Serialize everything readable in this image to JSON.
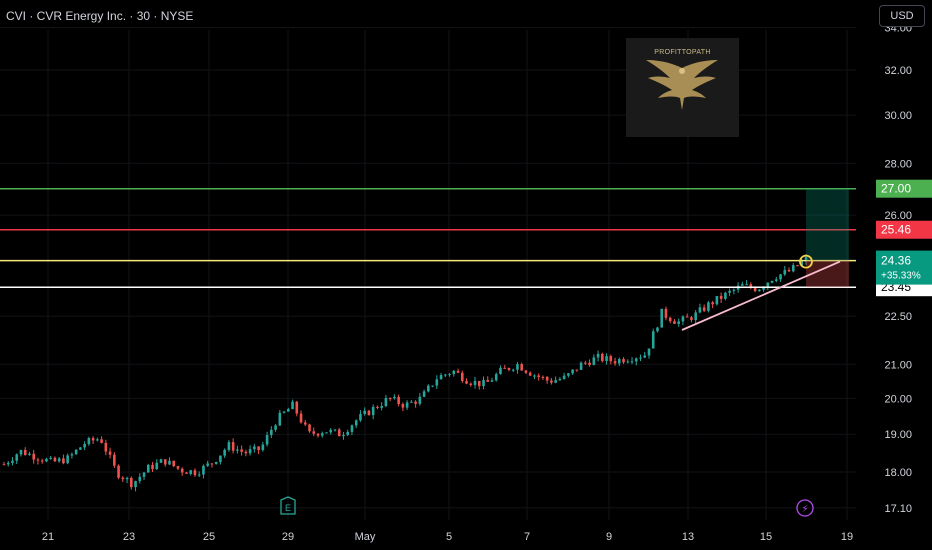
{
  "header": {
    "title": "CVI · CVR Energy Inc. · 30 · NYSE",
    "currency": "USD"
  },
  "watermark": {
    "text": "PROFITTOPATH"
  },
  "colors": {
    "background": "#000000",
    "grid": "#111317",
    "text": "#d1d4dc",
    "candle_up": "#26a69a",
    "candle_down": "#ef5350",
    "target_line": "#4caf50",
    "target_label": "#4caf50",
    "stop_line": "#f23645",
    "stop_label": "#f23645",
    "entry_line": "#f5e97a",
    "support_line": "#ffffff",
    "price_label": "#089981",
    "trendline": "#f8bbd0",
    "marker_circle": "#f0d04a",
    "earnings_icon": "#26a69a",
    "dividend_icon": "#b44bf0"
  },
  "chart_data": {
    "type": "candlestick",
    "price_axis": {
      "ticks": [
        34.0,
        32.0,
        30.0,
        28.0,
        26.0,
        22.5,
        21.0,
        20.0,
        19.0,
        18.0,
        17.1
      ],
      "scale": "log"
    },
    "time_axis": {
      "ticks": [
        "21",
        "23",
        "25",
        "29",
        "May",
        "5",
        "7",
        "9",
        "13",
        "15",
        "19"
      ]
    },
    "price_series": [
      {
        "t": 0,
        "p": 18.2
      },
      {
        "t": 1,
        "p": 18.55
      },
      {
        "t": 2,
        "p": 18.4
      },
      {
        "t": 3,
        "p": 18.25
      },
      {
        "t": 4,
        "p": 18.35
      },
      {
        "t": 5,
        "p": 18.75
      },
      {
        "t": 6,
        "p": 18.9
      },
      {
        "t": 7,
        "p": 18.0
      },
      {
        "t": 8,
        "p": 17.7
      },
      {
        "t": 9,
        "p": 18.1
      },
      {
        "t": 10,
        "p": 18.3
      },
      {
        "t": 11,
        "p": 18.05
      },
      {
        "t": 12,
        "p": 18.0
      },
      {
        "t": 13,
        "p": 18.25
      },
      {
        "t": 14,
        "p": 18.7
      },
      {
        "t": 15,
        "p": 18.5
      },
      {
        "t": 16,
        "p": 18.6
      },
      {
        "t": 17,
        "p": 19.4
      },
      {
        "t": 18,
        "p": 19.8
      },
      {
        "t": 19,
        "p": 19.0
      },
      {
        "t": 20,
        "p": 19.1
      },
      {
        "t": 21,
        "p": 19.0
      },
      {
        "t": 22,
        "p": 19.4
      },
      {
        "t": 23,
        "p": 19.7
      },
      {
        "t": 24,
        "p": 20.0
      },
      {
        "t": 25,
        "p": 19.8
      },
      {
        "t": 26,
        "p": 20.0
      },
      {
        "t": 27,
        "p": 20.6
      },
      {
        "t": 28,
        "p": 20.8
      },
      {
        "t": 29,
        "p": 20.5
      },
      {
        "t": 30,
        "p": 20.4
      },
      {
        "t": 31,
        "p": 20.8
      },
      {
        "t": 32,
        "p": 21.0
      },
      {
        "t": 33,
        "p": 20.7
      },
      {
        "t": 34,
        "p": 20.5
      },
      {
        "t": 35,
        "p": 20.6
      },
      {
        "t": 36,
        "p": 21.0
      },
      {
        "t": 37,
        "p": 21.2
      },
      {
        "t": 38,
        "p": 21.1
      },
      {
        "t": 39,
        "p": 21.2
      },
      {
        "t": 40,
        "p": 21.3
      },
      {
        "t": 41,
        "p": 22.6
      },
      {
        "t": 42,
        "p": 22.3
      },
      {
        "t": 43,
        "p": 22.5
      },
      {
        "t": 44,
        "p": 22.9
      },
      {
        "t": 45,
        "p": 23.2
      },
      {
        "t": 46,
        "p": 23.5
      },
      {
        "t": 47,
        "p": 23.4
      },
      {
        "t": 48,
        "p": 23.8
      },
      {
        "t": 49,
        "p": 24.0
      },
      {
        "t": 50,
        "p": 24.4
      }
    ],
    "levels": {
      "target": 27.0,
      "stop": 25.46,
      "entry": 24.36,
      "support": 23.45
    },
    "labels": {
      "target": "27.00",
      "stop": "25.46",
      "current_price": "24.36",
      "current_change": "+35.33%",
      "support": "23.45"
    },
    "event_markers": [
      {
        "type": "earnings",
        "symbol": "E"
      },
      {
        "type": "dividend",
        "symbol": "⚡"
      }
    ]
  }
}
